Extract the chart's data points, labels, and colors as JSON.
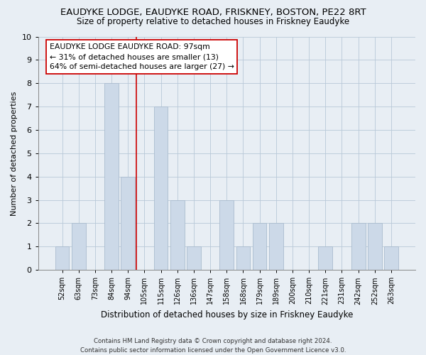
{
  "title": "EAUDYKE LODGE, EAUDYKE ROAD, FRISKNEY, BOSTON, PE22 8RT",
  "subtitle": "Size of property relative to detached houses in Friskney Eaudyke",
  "xlabel": "Distribution of detached houses by size in Friskney Eaudyke",
  "ylabel": "Number of detached properties",
  "bin_labels": [
    "52sqm",
    "63sqm",
    "73sqm",
    "84sqm",
    "94sqm",
    "105sqm",
    "115sqm",
    "126sqm",
    "136sqm",
    "147sqm",
    "158sqm",
    "168sqm",
    "179sqm",
    "189sqm",
    "200sqm",
    "210sqm",
    "221sqm",
    "231sqm",
    "242sqm",
    "252sqm",
    "263sqm"
  ],
  "bar_values": [
    1,
    2,
    0,
    8,
    4,
    0,
    7,
    3,
    1,
    0,
    3,
    1,
    2,
    2,
    0,
    0,
    1,
    0,
    2,
    2,
    1
  ],
  "bar_color": "#ccd9e8",
  "bar_edge_color": "#aabcce",
  "reference_line_x": 4.5,
  "reference_line_color": "#cc0000",
  "annotation_text": "EAUDYKE LODGE EAUDYKE ROAD: 97sqm\n← 31% of detached houses are smaller (13)\n64% of semi-detached houses are larger (27) →",
  "annotation_box_color": "#ffffff",
  "annotation_box_edge": "#cc0000",
  "ylim": [
    0,
    10
  ],
  "yticks": [
    0,
    1,
    2,
    3,
    4,
    5,
    6,
    7,
    8,
    9,
    10
  ],
  "footnote": "Contains HM Land Registry data © Crown copyright and database right 2024.\nContains public sector information licensed under the Open Government Licence v3.0.",
  "fig_bg_color": "#e8eef4",
  "plot_bg_color": "#e8eef4"
}
